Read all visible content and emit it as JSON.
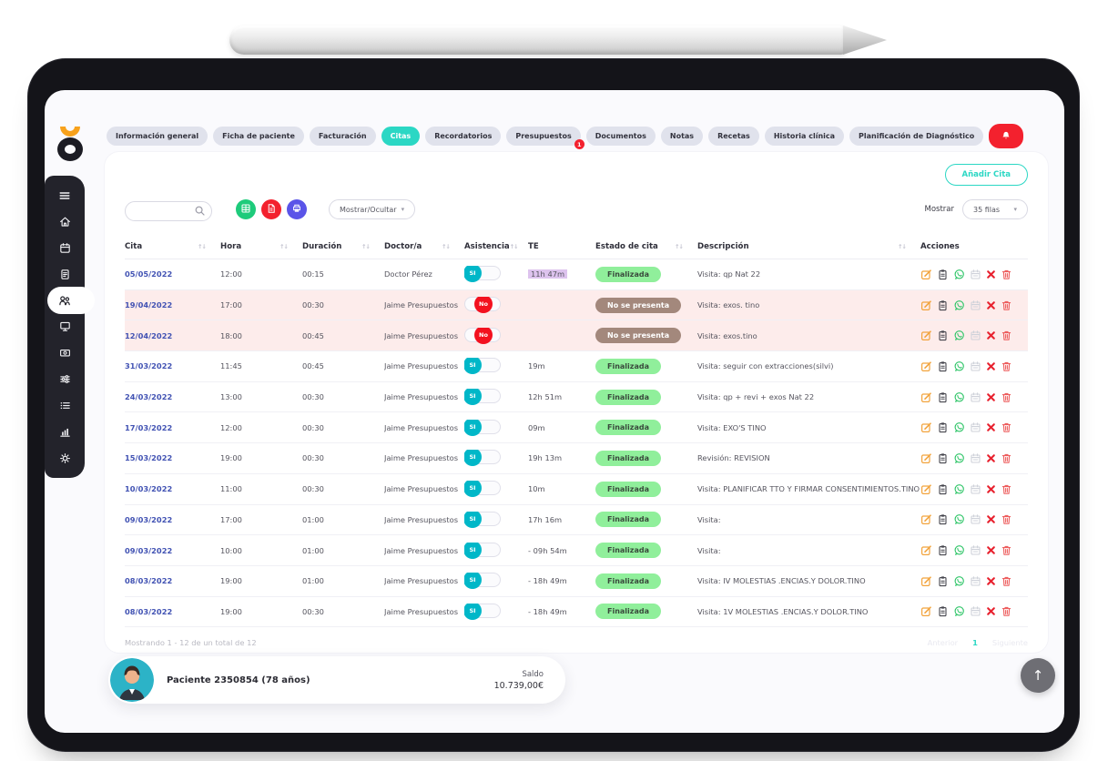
{
  "colors": {
    "accent_teal": "#2bd7c4",
    "toggle_teal": "#00b7c8",
    "danger_red": "#f3212e",
    "badge_green": "#90ef9b",
    "badge_brown": "#a3887c",
    "row_pink": "#fdeceb",
    "te_lavender": "#ddc3ee",
    "link_indigo": "#4152b3",
    "sidebar_dark": "#23232b",
    "logo_orange": "#f8a21c"
  },
  "tabs": [
    {
      "label": "Información general"
    },
    {
      "label": "Ficha de paciente"
    },
    {
      "label": "Facturación"
    },
    {
      "label": "Citas",
      "active": true
    },
    {
      "label": "Recordatorios"
    },
    {
      "label": "Presupuestos",
      "badge": "1"
    },
    {
      "label": "Documentos"
    },
    {
      "label": "Notas"
    },
    {
      "label": "Recetas"
    },
    {
      "label": "Historia clínica"
    },
    {
      "label": "Planificación de Diagnóstico"
    },
    {
      "icon": "bell-icon",
      "alert": true
    }
  ],
  "sidebar": {
    "items": [
      {
        "icon": "menu-icon"
      },
      {
        "icon": "home-icon"
      },
      {
        "icon": "calendar-icon"
      },
      {
        "icon": "document-icon"
      },
      {
        "icon": "patients-icon",
        "active": true
      },
      {
        "icon": "display-icon"
      },
      {
        "icon": "payment-icon"
      },
      {
        "icon": "sliders-icon"
      },
      {
        "icon": "list-icon"
      },
      {
        "icon": "stats-icon"
      },
      {
        "icon": "gear-icon"
      }
    ]
  },
  "toolbar": {
    "add_button": "Añadir Cita",
    "search_placeholder": "",
    "export_buttons": [
      {
        "icon": "excel-icon",
        "color": "#1ecb7b"
      },
      {
        "icon": "pdf-icon",
        "color": "#f3212e"
      },
      {
        "icon": "print-icon",
        "color": "#5a54e8"
      }
    ],
    "show_hide_label": "Mostrar/Ocultar",
    "show_label": "Mostrar",
    "rows_select": "35 filas"
  },
  "table": {
    "headers": [
      {
        "label": "Cita",
        "sortable": true
      },
      {
        "label": "Hora",
        "sortable": true
      },
      {
        "label": "Duración",
        "sortable": true
      },
      {
        "label": "Doctor/a",
        "sortable": true
      },
      {
        "label": "Asistencia",
        "sortable": true
      },
      {
        "label": "TE",
        "sortable": false
      },
      {
        "label": "Estado de cita",
        "sortable": true
      },
      {
        "label": "Descripción",
        "sortable": true
      },
      {
        "label": "Acciones",
        "sortable": false
      }
    ],
    "action_icons": [
      "edit-icon",
      "clipboard-icon",
      "whatsapp-icon",
      "calendar-small-icon",
      "cancel-icon",
      "trash-icon"
    ],
    "rows": [
      {
        "cita": "05/05/2022",
        "hora": "12:00",
        "duracion": "00:15",
        "doctor": "Doctor Pérez",
        "asistencia": "SI",
        "te": "11h 47m",
        "te_highlight": true,
        "estado": "Finalizada",
        "estado_type": "finalizada",
        "descripcion": "Visita: qp Nat 22",
        "highlight": false
      },
      {
        "cita": "19/04/2022",
        "hora": "17:00",
        "duracion": "00:30",
        "doctor": "Jaime Presupuestos",
        "asistencia": "No",
        "te": "",
        "te_highlight": false,
        "estado": "No se presenta",
        "estado_type": "no-presenta",
        "descripcion": "Visita: exos. tino",
        "highlight": true
      },
      {
        "cita": "12/04/2022",
        "hora": "18:00",
        "duracion": "00:45",
        "doctor": "Jaime Presupuestos",
        "asistencia": "No",
        "te": "",
        "te_highlight": false,
        "estado": "No se presenta",
        "estado_type": "no-presenta",
        "descripcion": "Visita: exos.tino",
        "highlight": true
      },
      {
        "cita": "31/03/2022",
        "hora": "11:45",
        "duracion": "00:45",
        "doctor": "Jaime Presupuestos",
        "asistencia": "SI",
        "te": "19m",
        "te_highlight": false,
        "estado": "Finalizada",
        "estado_type": "finalizada",
        "descripcion": "Visita: seguir con extracciones(silvi)",
        "highlight": false
      },
      {
        "cita": "24/03/2022",
        "hora": "13:00",
        "duracion": "00:30",
        "doctor": "Jaime Presupuestos",
        "asistencia": "SI",
        "te": "12h 51m",
        "te_highlight": false,
        "estado": "Finalizada",
        "estado_type": "finalizada",
        "descripcion": "Visita: qp + revi + exos Nat 22",
        "highlight": false
      },
      {
        "cita": "17/03/2022",
        "hora": "12:00",
        "duracion": "00:30",
        "doctor": "Jaime Presupuestos",
        "asistencia": "SI",
        "te": "09m",
        "te_highlight": false,
        "estado": "Finalizada",
        "estado_type": "finalizada",
        "descripcion": "Visita: EXO'S TINO",
        "highlight": false
      },
      {
        "cita": "15/03/2022",
        "hora": "19:00",
        "duracion": "00:30",
        "doctor": "Jaime Presupuestos",
        "asistencia": "SI",
        "te": "19h 13m",
        "te_highlight": false,
        "estado": "Finalizada",
        "estado_type": "finalizada",
        "descripcion": "Revisión: REVISION",
        "highlight": false
      },
      {
        "cita": "10/03/2022",
        "hora": "11:00",
        "duracion": "00:30",
        "doctor": "Jaime Presupuestos",
        "asistencia": "SI",
        "te": "10m",
        "te_highlight": false,
        "estado": "Finalizada",
        "estado_type": "finalizada",
        "descripcion": "Visita: PLANIFICAR TTO Y FIRMAR CONSENTIMIENTOS.TINO",
        "highlight": false
      },
      {
        "cita": "09/03/2022",
        "hora": "17:00",
        "duracion": "01:00",
        "doctor": "Jaime Presupuestos",
        "asistencia": "SI",
        "te": "17h 16m",
        "te_highlight": false,
        "estado": "Finalizada",
        "estado_type": "finalizada",
        "descripcion": "Visita:",
        "highlight": false
      },
      {
        "cita": "09/03/2022",
        "hora": "10:00",
        "duracion": "01:00",
        "doctor": "Jaime Presupuestos",
        "asistencia": "SI",
        "te": "- 09h 54m",
        "te_highlight": false,
        "estado": "Finalizada",
        "estado_type": "finalizada",
        "descripcion": "Visita:",
        "highlight": false
      },
      {
        "cita": "08/03/2022",
        "hora": "19:00",
        "duracion": "01:00",
        "doctor": "Jaime Presupuestos",
        "asistencia": "SI",
        "te": "- 18h 49m",
        "te_highlight": false,
        "estado": "Finalizada",
        "estado_type": "finalizada",
        "descripcion": "Visita: IV MOLESTIAS .ENCIAS.Y DOLOR.TINO",
        "highlight": false
      },
      {
        "cita": "08/03/2022",
        "hora": "19:00",
        "duracion": "00:30",
        "doctor": "Jaime Presupuestos",
        "asistencia": "SI",
        "te": "- 18h 49m",
        "te_highlight": false,
        "estado": "Finalizada",
        "estado_type": "finalizada",
        "descripcion": "Visita: 1V MOLESTIAS .ENCIAS.Y DOLOR.TINO",
        "highlight": false
      }
    ]
  },
  "footer": {
    "showing": "Mostrando 1 - 12 de un total de 12",
    "prev": "Anterior",
    "page": "1",
    "next": "Siguiente"
  },
  "patient": {
    "name": "Paciente 2350854 (78 años)",
    "balance_label": "Saldo",
    "balance": "10.739,00€"
  },
  "scroll_top": {
    "icon": "arrow-up-icon"
  }
}
